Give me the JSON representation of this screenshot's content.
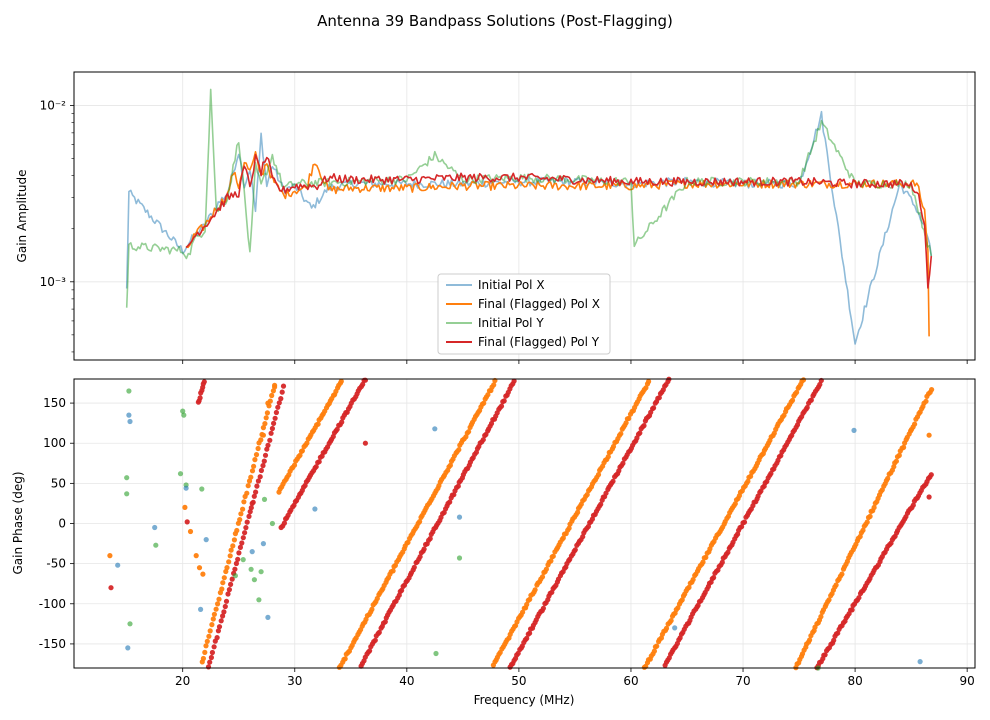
{
  "figure": {
    "title": "Antenna 39 Bandpass Solutions (Post-Flagging)"
  },
  "chart_data": [
    {
      "type": "line",
      "title": "",
      "xlabel": "",
      "ylabel": "Gain Amplitude",
      "yscale": "log",
      "xlim": [
        10.3,
        90.7
      ],
      "ylim": [
        0.00036,
        0.0155
      ],
      "grid": true,
      "ytick_labels": [
        "10⁻³",
        "10⁻²"
      ],
      "ytick_values": [
        0.001,
        0.01
      ],
      "legend_position": "lower-center",
      "series": [
        {
          "name": "Initial Pol X",
          "color": "#1f77b4",
          "opacity": 0.5,
          "x": [
            15.0,
            15.2,
            20.0,
            21.0,
            22.0,
            23.0,
            24.0,
            25.0,
            25.5,
            26.0,
            26.5,
            27.0,
            27.5,
            28.0,
            29.0,
            30.0,
            31.5,
            33.0,
            35.0,
            40.0,
            45.0,
            50.0,
            55.0,
            60.0,
            65.0,
            70.0,
            75.0,
            77.0,
            80.0,
            84.0,
            85.5,
            86.5,
            86.8
          ],
          "y": [
            0.0009,
            0.0032,
            0.0015,
            0.0018,
            0.0021,
            0.0027,
            0.0032,
            0.0055,
            0.0035,
            0.0044,
            0.0025,
            0.0068,
            0.0035,
            0.0046,
            0.0033,
            0.0035,
            0.0026,
            0.0034,
            0.0036,
            0.0036,
            0.0036,
            0.0037,
            0.0037,
            0.0036,
            0.0037,
            0.0036,
            0.0036,
            0.0088,
            0.00045,
            0.0036,
            0.0026,
            0.0018,
            0.0014
          ]
        },
        {
          "name": "Final (Flagged) Pol X",
          "color": "#ff7f0e",
          "opacity": 1,
          "x": [
            20.3,
            21.0,
            22.0,
            23.0,
            24.0,
            24.5,
            25.0,
            25.5,
            26.0,
            26.5,
            27.0,
            27.5,
            28.0,
            28.5,
            29.0,
            30.0,
            31.0,
            31.8,
            33.0,
            35.0,
            40.0,
            45.0,
            50.0,
            55.0,
            60.0,
            65.0,
            70.0,
            75.0,
            80.0,
            84.0,
            85.5,
            86.2,
            86.5,
            86.6
          ],
          "y": [
            0.0015,
            0.0018,
            0.0021,
            0.0026,
            0.0031,
            0.0042,
            0.0035,
            0.0048,
            0.0042,
            0.0052,
            0.004,
            0.0048,
            0.0038,
            0.0034,
            0.0031,
            0.0033,
            0.0034,
            0.0049,
            0.0033,
            0.0034,
            0.0034,
            0.0035,
            0.0035,
            0.0035,
            0.0035,
            0.0036,
            0.0036,
            0.0036,
            0.0036,
            0.0036,
            0.0036,
            0.0025,
            0.0015,
            0.00049
          ]
        },
        {
          "name": "Initial Pol Y",
          "color": "#2ca02c",
          "opacity": 0.5,
          "x": [
            15.0,
            15.2,
            20.0,
            20.5,
            21.0,
            22.0,
            22.5,
            23.0,
            24.0,
            25.0,
            25.5,
            26.0,
            26.5,
            27.0,
            28.0,
            29.0,
            30.0,
            35.0,
            40.0,
            42.5,
            45.0,
            50.0,
            55.0,
            60.0,
            60.3,
            65.0,
            70.0,
            75.0,
            77.0,
            80.0,
            85.0,
            86.8
          ],
          "y": [
            0.0007,
            0.0016,
            0.0015,
            0.0014,
            0.0017,
            0.002,
            0.0123,
            0.0025,
            0.003,
            0.0065,
            0.0032,
            0.0014,
            0.0045,
            0.0035,
            0.0052,
            0.0034,
            0.0036,
            0.0037,
            0.0038,
            0.0052,
            0.0038,
            0.0039,
            0.0038,
            0.0037,
            0.0016,
            0.0037,
            0.0037,
            0.0037,
            0.008,
            0.0036,
            0.0036,
            0.0014
          ]
        },
        {
          "name": "Final (Flagged) Pol Y",
          "color": "#d62728",
          "opacity": 1,
          "x": [
            20.3,
            21.0,
            22.0,
            23.0,
            24.0,
            25.0,
            25.5,
            26.0,
            26.5,
            27.0,
            27.5,
            28.0,
            28.5,
            29.0,
            30.0,
            32.0,
            33.0,
            35.0,
            40.0,
            45.0,
            50.0,
            55.0,
            60.0,
            65.0,
            70.0,
            75.0,
            80.0,
            84.0,
            85.0,
            85.5,
            86.2,
            86.5,
            86.8
          ],
          "y": [
            0.0015,
            0.0018,
            0.0021,
            0.0025,
            0.003,
            0.0032,
            0.0045,
            0.0035,
            0.005,
            0.0042,
            0.0052,
            0.0038,
            0.0034,
            0.0033,
            0.0035,
            0.0035,
            0.0039,
            0.0038,
            0.0038,
            0.0039,
            0.0039,
            0.0038,
            0.0037,
            0.0037,
            0.0037,
            0.0037,
            0.0036,
            0.0036,
            0.0035,
            0.0033,
            0.0022,
            0.0009,
            0.0014
          ]
        }
      ]
    },
    {
      "type": "scatter",
      "title": "",
      "xlabel": "Frequency (MHz)",
      "ylabel": "Gain Phase (deg)",
      "xlim": [
        10.3,
        90.7
      ],
      "ylim": [
        -180,
        180
      ],
      "grid": true,
      "xticks": [
        20,
        30,
        40,
        50,
        60,
        70,
        80,
        90
      ],
      "yticks": [
        -150,
        -100,
        -50,
        0,
        50,
        100,
        150
      ],
      "series": [
        {
          "name": "Final (Flagged) Pol X",
          "color": "#ff7f0e",
          "wrap_segments": [
            [
              21.6,
              -180,
              28.2,
              172
            ],
            [
              28.6,
              40,
              34.3,
              180
            ],
            [
              34.0,
              -180,
              48.0,
              180
            ],
            [
              47.6,
              -180,
              61.7,
              180
            ],
            [
              61.2,
              -180,
              75.4,
              180
            ],
            [
              74.7,
              -180,
              86.8,
              168
            ]
          ],
          "outliers": [
            [
              13.5,
              -40
            ],
            [
              20.2,
              20
            ],
            [
              20.7,
              -10
            ],
            [
              21.2,
              -40
            ],
            [
              21.5,
              -55
            ],
            [
              21.8,
              -63
            ],
            [
              27.2,
              110
            ],
            [
              27.6,
              150
            ],
            [
              28.2,
              170
            ],
            [
              86.6,
              110
            ]
          ]
        },
        {
          "name": "Final (Flagged) Pol Y",
          "color": "#d62728",
          "wrap_segments": [
            [
              21.4,
              150,
              22.0,
              180
            ],
            [
              22.3,
              -180,
              29.0,
              170
            ],
            [
              28.8,
              -5,
              36.3,
              180
            ],
            [
              35.8,
              -180,
              49.7,
              180
            ],
            [
              49.2,
              -180,
              63.4,
              180
            ],
            [
              62.9,
              -180,
              77.1,
              180
            ],
            [
              76.6,
              -180,
              86.8,
              62
            ]
          ],
          "outliers": [
            [
              13.6,
              -80
            ],
            [
              20.4,
              2
            ],
            [
              26.2,
              25
            ],
            [
              36.3,
              100
            ],
            [
              86.6,
              33
            ]
          ]
        },
        {
          "name": "Initial Pol Y",
          "color": "#2ca02c",
          "outliers": [
            [
              15.2,
              165
            ],
            [
              15.0,
              57
            ],
            [
              15.0,
              37
            ],
            [
              15.3,
              -125
            ],
            [
              17.6,
              -27
            ],
            [
              20.1,
              135
            ],
            [
              20.0,
              140
            ],
            [
              19.8,
              62
            ],
            [
              20.3,
              48
            ],
            [
              21.7,
              43
            ],
            [
              24.7,
              -65
            ],
            [
              25.4,
              -45
            ],
            [
              26.1,
              -57
            ],
            [
              26.4,
              -70
            ],
            [
              26.8,
              -95
            ],
            [
              27.0,
              -60
            ],
            [
              27.3,
              30
            ],
            [
              28.0,
              0
            ],
            [
              44.7,
              -43
            ],
            [
              42.6,
              -162
            ],
            [
              76.7,
              -180
            ]
          ]
        },
        {
          "name": "Initial Pol X",
          "color": "#1f77b4",
          "outliers": [
            [
              14.2,
              -52
            ],
            [
              15.2,
              135
            ],
            [
              15.3,
              127
            ],
            [
              15.1,
              -155
            ],
            [
              17.5,
              -5
            ],
            [
              20.3,
              44
            ],
            [
              21.6,
              -107
            ],
            [
              22.1,
              -20
            ],
            [
              26.2,
              -35
            ],
            [
              27.2,
              -25
            ],
            [
              27.6,
              -117
            ],
            [
              31.8,
              18
            ],
            [
              42.5,
              118
            ],
            [
              44.7,
              8
            ],
            [
              63.9,
              -130
            ],
            [
              79.9,
              116
            ],
            [
              85.8,
              -172
            ]
          ]
        }
      ]
    }
  ]
}
